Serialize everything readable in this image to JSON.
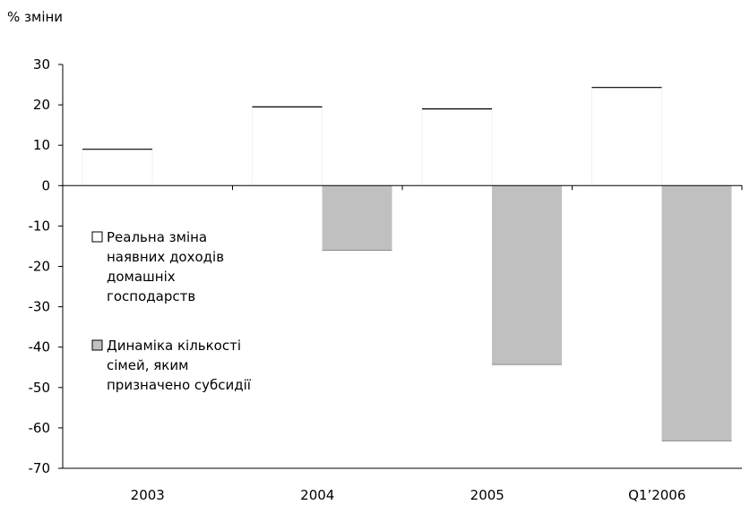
{
  "chart_data": {
    "type": "bar",
    "ylabel": "% зміни",
    "categories": [
      "2003",
      "2004",
      "2005",
      "Q1’2006"
    ],
    "ylim": [
      -70,
      30
    ],
    "yticks": [
      30,
      20,
      10,
      0,
      -10,
      -20,
      -30,
      -40,
      -50,
      -60,
      -70
    ],
    "grid": false,
    "legend_position": "left-middle",
    "series": [
      {
        "name": "Реальна зміна наявних доходів домашніх господарств",
        "legend_lines": [
          "Реальна зміна",
          "наявних доходів",
          "домашніх",
          "господарств"
        ],
        "color": "#ffffff",
        "values": [
          9,
          19.5,
          19,
          24.3
        ]
      },
      {
        "name": "Динаміка кількості сімей, яким призначено субсидії",
        "legend_lines": [
          "Динаміка кількості",
          "сімей, яким",
          "призначено субсидії"
        ],
        "color": "#c0c0c0",
        "values": [
          0,
          -16,
          -44.3,
          -63.2
        ]
      }
    ]
  }
}
